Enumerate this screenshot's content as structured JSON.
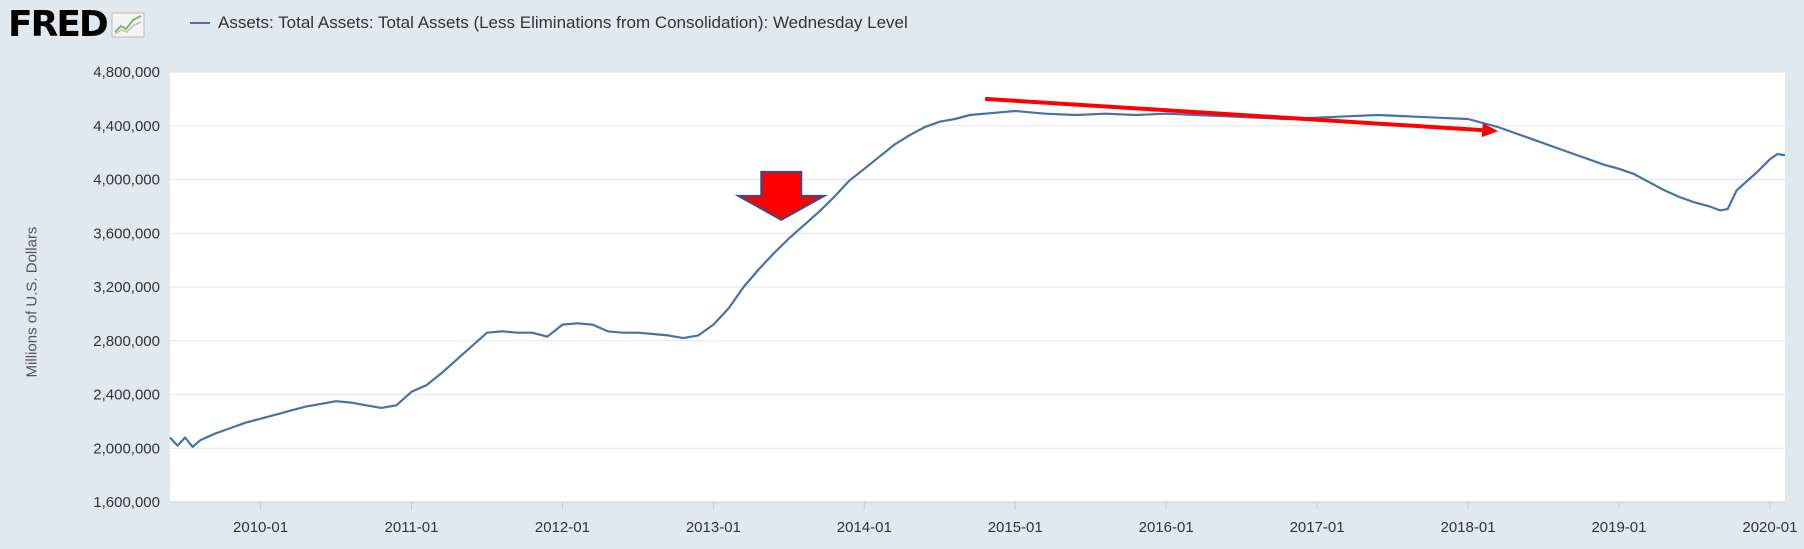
{
  "brand": {
    "logo_text": "FRED"
  },
  "chart_data": {
    "type": "line",
    "title": "Assets: Total Assets: Total Assets (Less Eliminations from Consolidation): Wednesday Level",
    "ylabel": "Millions of U.S. Dollars",
    "xlabel": "",
    "series_color": "#4572a7",
    "x_unit": "year (fractional)",
    "xlim": [
      2009.4,
      2020.1
    ],
    "ylim": [
      1600000,
      4800000
    ],
    "y_ticks": [
      1600000,
      2000000,
      2400000,
      2800000,
      3200000,
      3600000,
      4000000,
      4400000,
      4800000
    ],
    "y_tick_labels": [
      "1,600,000",
      "2,000,000",
      "2,400,000",
      "2,800,000",
      "3,200,000",
      "3,600,000",
      "4,000,000",
      "4,400,000",
      "4,800,000"
    ],
    "x_ticks": [
      2010,
      2011,
      2012,
      2013,
      2014,
      2015,
      2016,
      2017,
      2018,
      2019,
      2020
    ],
    "x_tick_labels": [
      "2010-01",
      "2011-01",
      "2012-01",
      "2013-01",
      "2014-01",
      "2015-01",
      "2016-01",
      "2017-01",
      "2018-01",
      "2019-01",
      "2020-01"
    ],
    "grid": true,
    "legend_position": "top",
    "series": [
      {
        "name": "Assets: Total Assets: Total Assets (Less Eliminations from Consolidation): Wednesday Level",
        "points": [
          [
            2009.4,
            2080000
          ],
          [
            2009.45,
            2020000
          ],
          [
            2009.5,
            2080000
          ],
          [
            2009.55,
            2010000
          ],
          [
            2009.6,
            2060000
          ],
          [
            2009.7,
            2110000
          ],
          [
            2009.8,
            2150000
          ],
          [
            2009.9,
            2190000
          ],
          [
            2010.0,
            2220000
          ],
          [
            2010.1,
            2250000
          ],
          [
            2010.2,
            2280000
          ],
          [
            2010.3,
            2310000
          ],
          [
            2010.4,
            2330000
          ],
          [
            2010.5,
            2350000
          ],
          [
            2010.6,
            2340000
          ],
          [
            2010.7,
            2320000
          ],
          [
            2010.8,
            2300000
          ],
          [
            2010.9,
            2320000
          ],
          [
            2011.0,
            2420000
          ],
          [
            2011.1,
            2470000
          ],
          [
            2011.2,
            2560000
          ],
          [
            2011.3,
            2660000
          ],
          [
            2011.4,
            2760000
          ],
          [
            2011.5,
            2860000
          ],
          [
            2011.6,
            2870000
          ],
          [
            2011.7,
            2860000
          ],
          [
            2011.8,
            2860000
          ],
          [
            2011.9,
            2830000
          ],
          [
            2012.0,
            2920000
          ],
          [
            2012.1,
            2930000
          ],
          [
            2012.2,
            2920000
          ],
          [
            2012.3,
            2870000
          ],
          [
            2012.4,
            2860000
          ],
          [
            2012.5,
            2860000
          ],
          [
            2012.6,
            2850000
          ],
          [
            2012.7,
            2840000
          ],
          [
            2012.8,
            2820000
          ],
          [
            2012.9,
            2840000
          ],
          [
            2013.0,
            2920000
          ],
          [
            2013.1,
            3040000
          ],
          [
            2013.2,
            3200000
          ],
          [
            2013.3,
            3330000
          ],
          [
            2013.4,
            3450000
          ],
          [
            2013.5,
            3560000
          ],
          [
            2013.6,
            3660000
          ],
          [
            2013.7,
            3760000
          ],
          [
            2013.8,
            3870000
          ],
          [
            2013.9,
            3990000
          ],
          [
            2014.0,
            4080000
          ],
          [
            2014.1,
            4170000
          ],
          [
            2014.2,
            4260000
          ],
          [
            2014.3,
            4330000
          ],
          [
            2014.4,
            4390000
          ],
          [
            2014.5,
            4430000
          ],
          [
            2014.6,
            4450000
          ],
          [
            2014.7,
            4480000
          ],
          [
            2014.8,
            4490000
          ],
          [
            2014.9,
            4500000
          ],
          [
            2015.0,
            4510000
          ],
          [
            2015.2,
            4490000
          ],
          [
            2015.4,
            4480000
          ],
          [
            2015.6,
            4490000
          ],
          [
            2015.8,
            4480000
          ],
          [
            2016.0,
            4490000
          ],
          [
            2016.2,
            4480000
          ],
          [
            2016.4,
            4470000
          ],
          [
            2016.6,
            4460000
          ],
          [
            2016.8,
            4450000
          ],
          [
            2017.0,
            4460000
          ],
          [
            2017.2,
            4470000
          ],
          [
            2017.4,
            4480000
          ],
          [
            2017.6,
            4470000
          ],
          [
            2017.8,
            4460000
          ],
          [
            2018.0,
            4450000
          ],
          [
            2018.1,
            4420000
          ],
          [
            2018.2,
            4390000
          ],
          [
            2018.3,
            4350000
          ],
          [
            2018.4,
            4310000
          ],
          [
            2018.5,
            4270000
          ],
          [
            2018.6,
            4230000
          ],
          [
            2018.7,
            4190000
          ],
          [
            2018.8,
            4150000
          ],
          [
            2018.9,
            4110000
          ],
          [
            2019.0,
            4080000
          ],
          [
            2019.1,
            4040000
          ],
          [
            2019.2,
            3980000
          ],
          [
            2019.3,
            3920000
          ],
          [
            2019.4,
            3870000
          ],
          [
            2019.5,
            3830000
          ],
          [
            2019.6,
            3800000
          ],
          [
            2019.67,
            3770000
          ],
          [
            2019.72,
            3780000
          ],
          [
            2019.78,
            3920000
          ],
          [
            2019.85,
            3990000
          ],
          [
            2019.92,
            4060000
          ],
          [
            2020.0,
            4150000
          ],
          [
            2020.05,
            4190000
          ],
          [
            2020.1,
            4180000
          ]
        ]
      }
    ],
    "annotations": [
      {
        "type": "down-arrow",
        "color": "#ff0000",
        "x": 2013.45,
        "y": 3700000
      },
      {
        "type": "trend-arrow",
        "color": "#ff0000",
        "from": [
          2014.8,
          4600000
        ],
        "to": [
          2018.2,
          4360000
        ]
      }
    ]
  }
}
